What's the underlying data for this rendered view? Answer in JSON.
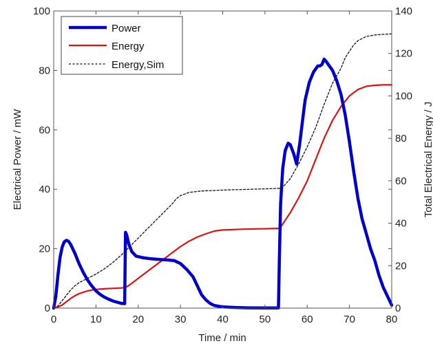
{
  "chart_data": {
    "type": "line",
    "title": "",
    "xlabel": "Time / min",
    "ylabel": "Electrical Power / mW",
    "y2label": "Total Electrical Energy / J",
    "xlim": [
      0,
      80
    ],
    "ylim": [
      0,
      100
    ],
    "y2lim": [
      0,
      140
    ],
    "xticks": [
      0,
      10,
      20,
      30,
      40,
      50,
      60,
      70,
      80
    ],
    "yticks": [
      0,
      20,
      40,
      60,
      80,
      100
    ],
    "y2ticks": [
      0,
      20,
      40,
      60,
      80,
      100,
      120,
      140
    ],
    "grid": false,
    "legend_position": "top-left",
    "series": [
      {
        "name": "Power",
        "axis": "left",
        "color": "#0000cc",
        "style": "solid-thick",
        "x": [
          0,
          0.5,
          1,
          1.5,
          2,
          2.5,
          3,
          3.5,
          4,
          5,
          6,
          7,
          8,
          9,
          10,
          11,
          12,
          13,
          14,
          15,
          16,
          16.8,
          17,
          17.3,
          17.8,
          18.5,
          19.5,
          21,
          23,
          25,
          27,
          28.5,
          30,
          31.5,
          33,
          34,
          35,
          36,
          37,
          38,
          40,
          43,
          46,
          50,
          53.2,
          53.4,
          53.7,
          54.2,
          54.8,
          55.5,
          56,
          56.8,
          57.5,
          58.2,
          58.8,
          59.5,
          60.5,
          61.5,
          62.5,
          63,
          63.5,
          64,
          64.5,
          65,
          66,
          67,
          68,
          69,
          70,
          71,
          72,
          73,
          74,
          75,
          76,
          77,
          78,
          79,
          80
        ],
        "values": [
          0,
          4,
          11,
          17,
          20.5,
          22.3,
          22.8,
          22.5,
          21.5,
          18.5,
          15,
          12,
          9.5,
          7.5,
          5.8,
          4.6,
          3.7,
          3,
          2.4,
          2,
          1.6,
          1.5,
          25.5,
          24.5,
          21.5,
          19,
          17.5,
          17,
          16.6,
          16.4,
          16.2,
          16,
          15,
          13,
          10.5,
          7.5,
          4.5,
          2.8,
          1.6,
          0.9,
          0.4,
          0.2,
          0.1,
          0.05,
          0.05,
          15,
          35,
          47,
          53,
          55.5,
          55,
          52,
          48.5,
          55,
          62,
          70,
          76,
          79.5,
          81.5,
          81.5,
          82,
          83.8,
          83,
          82,
          80,
          76.5,
          72,
          65,
          56,
          46,
          37,
          30,
          25,
          20,
          16,
          11,
          7,
          4,
          1
        ]
      },
      {
        "name": "Energy",
        "axis": "right",
        "color": "#dd1111",
        "style": "solid",
        "x": [
          0,
          1,
          2,
          3,
          4,
          5,
          6,
          7,
          8,
          9,
          10,
          12,
          14,
          16,
          17,
          18,
          20,
          22,
          24,
          26,
          28,
          30,
          32,
          34,
          36,
          38,
          40,
          45,
          50,
          53.5,
          54,
          56,
          58,
          60,
          62,
          64,
          66,
          68,
          70,
          72,
          74,
          76,
          78,
          80
        ],
        "values": [
          0,
          0.5,
          1.5,
          3,
          4.5,
          5.8,
          6.8,
          7.5,
          8.1,
          8.5,
          8.8,
          9.1,
          9.3,
          9.5,
          9.7,
          11,
          14,
          17,
          20,
          23,
          26,
          29,
          31.5,
          33.5,
          35,
          36.3,
          36.8,
          37.2,
          37.4,
          37.6,
          39,
          45,
          52,
          60,
          70,
          80,
          88.5,
          95,
          100,
          103,
          104.5,
          105,
          105.2,
          105.2
        ]
      },
      {
        "name": "Energy,Sim",
        "axis": "right",
        "color": "#111111",
        "style": "dashed",
        "x": [
          0,
          1,
          2,
          3,
          4,
          5,
          6,
          8,
          10,
          12,
          14,
          16,
          18,
          20,
          22,
          24,
          26,
          28,
          29,
          30,
          32,
          35,
          40,
          45,
          50,
          54,
          56,
          58,
          60,
          62,
          64,
          66,
          68,
          69,
          70,
          71,
          72,
          74,
          76,
          78,
          80
        ],
        "values": [
          0,
          1,
          3.5,
          6,
          8.5,
          10.5,
          12,
          14,
          16,
          18.5,
          21.5,
          25,
          29,
          33,
          37,
          41,
          45,
          49,
          51.5,
          53,
          54.5,
          55.2,
          55.6,
          55.9,
          56.2,
          56.5,
          61,
          68,
          76,
          85,
          96,
          106,
          113,
          118,
          121,
          124,
          126,
          128,
          128.7,
          129,
          129.2
        ]
      }
    ]
  }
}
